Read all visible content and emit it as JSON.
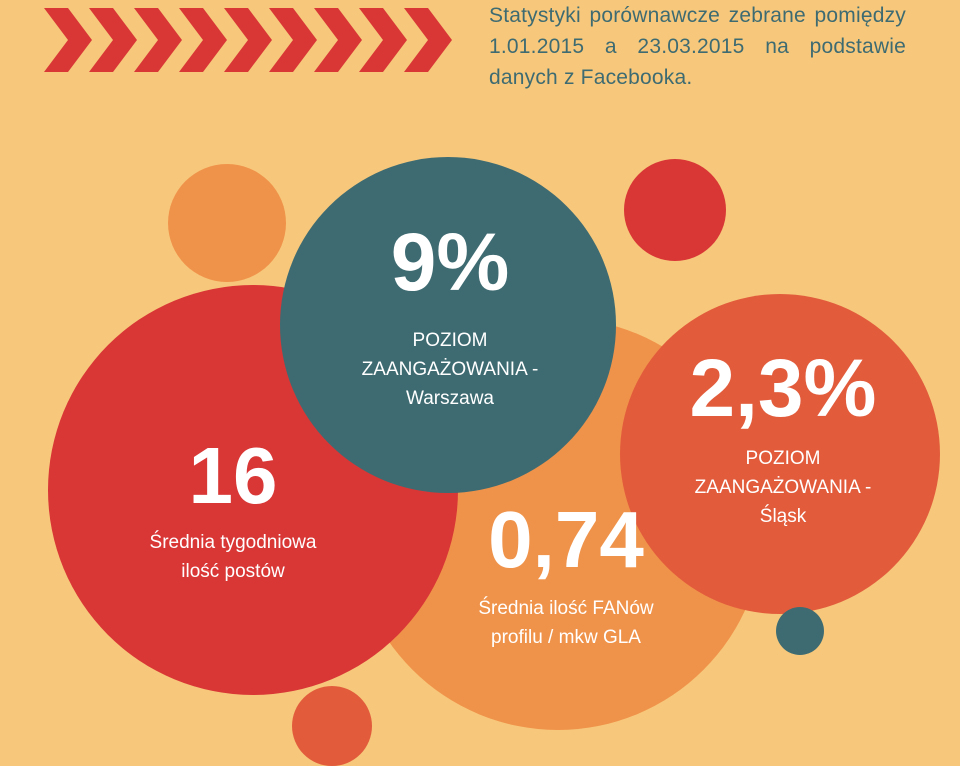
{
  "header": {
    "description": "Statystyki porównawcze zebrane pomiędzy 1.01.2015 a 23.03.2015 na podstawie danych z Facebooka."
  },
  "colors": {
    "background": "#f7c87b",
    "red": "#d93636",
    "teal": "#3e6b72",
    "orange": "#f0934a",
    "coral": "#e25c3c",
    "light_orange": "#f3a34e",
    "text_teal": "#3e6b72",
    "white": "#ffffff"
  },
  "stats": {
    "engagement_warsaw": {
      "value": "9%",
      "label_line1": "POZIOM",
      "label_line2": "ZAANGAŻOWANIA -",
      "label_line3": "Warszawa"
    },
    "engagement_silesia": {
      "value": "2,3%",
      "label_line1": "POZIOM",
      "label_line2": "ZAANGAŻOWANIA -",
      "label_line3": "Śląsk"
    },
    "weekly_posts": {
      "value": "16",
      "label_line1": "Średnia tygodniowa",
      "label_line2": "ilość postów"
    },
    "fans_per_sqm": {
      "value": "0,74",
      "label_line1": "Średnia ilość FANów",
      "label_line2": "profilu / mkw GLA"
    }
  }
}
